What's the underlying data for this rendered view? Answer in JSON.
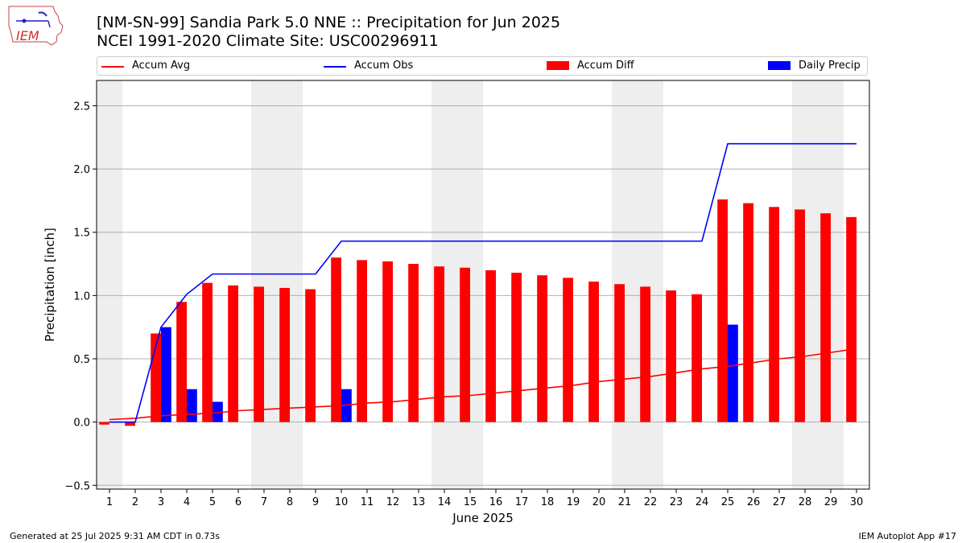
{
  "logo": {
    "text": "IEM"
  },
  "header": {
    "title": "[NM-SN-99] Sandia Park 5.0 NNE :: Precipitation for Jun 2025",
    "subtitle": "NCEI 1991-2020 Climate Site: USC00296911"
  },
  "legend": {
    "items": [
      {
        "label": "Accum Avg",
        "kind": "line",
        "color": "#ff0000"
      },
      {
        "label": "Accum Obs",
        "kind": "line",
        "color": "#0000ff"
      },
      {
        "label": "Accum Diff",
        "kind": "bar",
        "color": "#ff0000"
      },
      {
        "label": "Daily Precip",
        "kind": "bar",
        "color": "#0000ff"
      }
    ]
  },
  "footer": {
    "left": "Generated at 25 Jul 2025 9:31 AM CDT in 0.73s",
    "right": "IEM Autoplot App #17"
  },
  "chart_data": {
    "type": "bar",
    "xlabel": "June 2025",
    "ylabel": "Precipitation [inch]",
    "ylim": [
      -0.53,
      2.7
    ],
    "yticks": [
      "−0.5",
      "0.0",
      "0.5",
      "1.0",
      "1.5",
      "2.0",
      "2.5"
    ],
    "ytick_values": [
      -0.5,
      0,
      0.5,
      1.0,
      1.5,
      2.0,
      2.5
    ],
    "x": [
      1,
      2,
      3,
      4,
      5,
      6,
      7,
      8,
      9,
      10,
      11,
      12,
      13,
      14,
      15,
      16,
      17,
      18,
      19,
      20,
      21,
      22,
      23,
      24,
      25,
      26,
      27,
      28,
      29,
      30
    ],
    "grid": "horizontal",
    "weekend_shading": [
      [
        1,
        1
      ],
      [
        7,
        8
      ],
      [
        14,
        15
      ],
      [
        21,
        22
      ],
      [
        28,
        29
      ]
    ],
    "colors": {
      "avg": "#ff0000",
      "obs": "#0000ff",
      "diff": "#ff0000",
      "daily": "#0000ff",
      "shade": "#eeeeee",
      "grid": "#b0b0b0"
    },
    "series": [
      {
        "name": "Accum Avg",
        "kind": "line",
        "values": [
          0.02,
          0.03,
          0.05,
          0.06,
          0.07,
          0.09,
          0.1,
          0.11,
          0.12,
          0.13,
          0.15,
          0.16,
          0.18,
          0.2,
          0.21,
          0.23,
          0.25,
          0.27,
          0.29,
          0.32,
          0.34,
          0.36,
          0.39,
          0.42,
          0.44,
          0.47,
          0.5,
          0.52,
          0.55,
          0.58
        ]
      },
      {
        "name": "Accum Obs",
        "kind": "line",
        "values": [
          0.0,
          0.0,
          0.75,
          1.01,
          1.17,
          1.17,
          1.17,
          1.17,
          1.17,
          1.43,
          1.43,
          1.43,
          1.43,
          1.43,
          1.43,
          1.43,
          1.43,
          1.43,
          1.43,
          1.43,
          1.43,
          1.43,
          1.43,
          1.43,
          2.2,
          2.2,
          2.2,
          2.2,
          2.2,
          2.2
        ]
      },
      {
        "name": "Accum Diff",
        "kind": "bar",
        "values": [
          -0.02,
          -0.03,
          0.7,
          0.95,
          1.1,
          1.08,
          1.07,
          1.06,
          1.05,
          1.3,
          1.28,
          1.27,
          1.25,
          1.23,
          1.22,
          1.2,
          1.18,
          1.16,
          1.14,
          1.11,
          1.09,
          1.07,
          1.04,
          1.01,
          1.76,
          1.73,
          1.7,
          1.68,
          1.65,
          1.62
        ]
      },
      {
        "name": "Daily Precip",
        "kind": "bar",
        "values": [
          0,
          0,
          0.75,
          0.26,
          0.16,
          0,
          0,
          0,
          0,
          0.26,
          0,
          0,
          0,
          0,
          0,
          0,
          0,
          0,
          0,
          0,
          0,
          0,
          0,
          0,
          0.77,
          0,
          0,
          0,
          0,
          0
        ]
      }
    ]
  }
}
